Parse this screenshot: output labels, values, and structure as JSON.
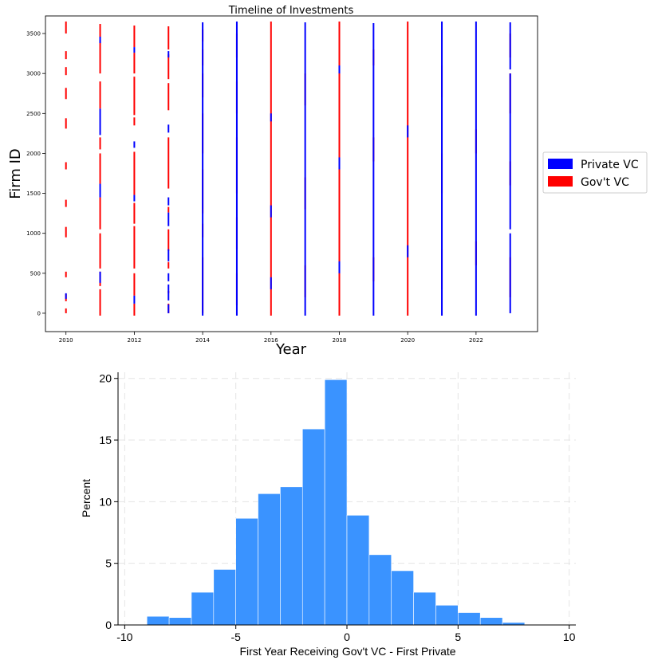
{
  "chart_data": [
    {
      "type": "timeline",
      "title": "Timeline of Investments",
      "xlabel": "Year",
      "ylabel": "Firm ID",
      "xlim": [
        2009.4,
        2023.8
      ],
      "ylim": [
        -230,
        3720
      ],
      "x_ticks": [
        2010,
        2012,
        2014,
        2016,
        2018,
        2020,
        2022
      ],
      "y_ticks": [
        0,
        500,
        1000,
        1500,
        2000,
        2500,
        3000,
        3500
      ],
      "legend": {
        "placement": "outside right",
        "entries": [
          "Private VC",
          "Gov't VC"
        ]
      },
      "colors": {
        "private": "#0000ff",
        "gov": "#ff0000"
      },
      "years": [
        {
          "year": 2010,
          "gov": [
            [
              0,
              60
            ],
            [
              150,
              240
            ],
            [
              450,
              520
            ],
            [
              950,
              1080
            ],
            [
              1330,
              1420
            ],
            [
              1800,
              1890
            ],
            [
              2310,
              2440
            ],
            [
              2680,
              2820
            ],
            [
              2980,
              3080
            ],
            [
              3180,
              3280
            ],
            [
              3500,
              3650
            ]
          ],
          "private": [
            [
              180,
              250
            ]
          ]
        },
        {
          "year": 2011,
          "gov": [
            [
              -30,
              300
            ],
            [
              340,
              520
            ],
            [
              560,
              1000
            ],
            [
              1050,
              1450
            ],
            [
              1620,
              2000
            ],
            [
              2050,
              2200
            ],
            [
              2560,
              2900
            ],
            [
              3000,
              3420
            ],
            [
              3450,
              3620
            ]
          ],
          "private": [
            [
              380,
              520
            ],
            [
              1450,
              1620
            ],
            [
              2230,
              2560
            ],
            [
              3380,
              3460
            ]
          ]
        },
        {
          "year": 2012,
          "gov": [
            [
              -30,
              120
            ],
            [
              220,
              500
            ],
            [
              560,
              1090
            ],
            [
              1120,
              1380
            ],
            [
              1480,
              2020
            ],
            [
              2350,
              2450
            ],
            [
              2480,
              2960
            ],
            [
              3000,
              3260
            ],
            [
              3330,
              3600
            ]
          ],
          "private": [
            [
              120,
              220
            ],
            [
              1400,
              1480
            ],
            [
              2070,
              2150
            ],
            [
              3260,
              3330
            ]
          ]
        },
        {
          "year": 2013,
          "gov": [
            [
              0,
              120
            ],
            [
              250,
              280
            ],
            [
              560,
              640
            ],
            [
              780,
              1050
            ],
            [
              1260,
              1330
            ],
            [
              1560,
              2200
            ],
            [
              2540,
              2880
            ],
            [
              2930,
              3240
            ],
            [
              3300,
              3590
            ]
          ],
          "private": [
            [
              0,
              110
            ],
            [
              160,
              360
            ],
            [
              400,
              500
            ],
            [
              650,
              800
            ],
            [
              1090,
              1260
            ],
            [
              1350,
              1450
            ],
            [
              2260,
              2360
            ],
            [
              3200,
              3280
            ]
          ]
        },
        {
          "year": 2014,
          "gov": [
            [
              0,
              700
            ],
            [
              950,
              1120
            ],
            [
              1250,
              1800
            ],
            [
              2000,
              2500
            ],
            [
              2700,
              3000
            ],
            [
              3100,
              3300
            ],
            [
              3400,
              3550
            ]
          ],
          "private": [
            [
              -30,
              1300
            ],
            [
              1300,
              3640
            ]
          ]
        },
        {
          "year": 2015,
          "gov": [
            [
              100,
              500
            ],
            [
              800,
              1200
            ],
            [
              1500,
              2200
            ],
            [
              2500,
              2900
            ],
            [
              3200,
              3500
            ]
          ],
          "private": [
            [
              -30,
              3650
            ]
          ]
        },
        {
          "year": 2016,
          "gov": [
            [
              -30,
              3650
            ]
          ],
          "private": [
            [
              300,
              450
            ],
            [
              1200,
              1350
            ],
            [
              2400,
              2500
            ]
          ]
        },
        {
          "year": 2017,
          "gov": [
            [
              200,
              600
            ],
            [
              1300,
              1700
            ],
            [
              2600,
              3000
            ]
          ],
          "private": [
            [
              -30,
              3640
            ]
          ]
        },
        {
          "year": 2018,
          "gov": [
            [
              -30,
              3650
            ]
          ],
          "private": [
            [
              500,
              650
            ],
            [
              1800,
              1950
            ],
            [
              3000,
              3100
            ]
          ]
        },
        {
          "year": 2019,
          "gov": [
            [
              400,
              700
            ],
            [
              1900,
              2200
            ],
            [
              3100,
              3300
            ]
          ],
          "private": [
            [
              -30,
              3630
            ]
          ]
        },
        {
          "year": 2020,
          "gov": [
            [
              -30,
              3650
            ]
          ],
          "private": [
            [
              700,
              850
            ],
            [
              2200,
              2350
            ]
          ]
        },
        {
          "year": 2021,
          "gov": [
            [
              300,
              800
            ],
            [
              1500,
              2000
            ],
            [
              2700,
              3100
            ]
          ],
          "private": [
            [
              -30,
              3650
            ]
          ]
        },
        {
          "year": 2022,
          "gov": [
            [
              600,
              900
            ],
            [
              2000,
              2300
            ]
          ],
          "private": [
            [
              -30,
              3650
            ]
          ]
        },
        {
          "year": 2023,
          "gov": [
            [
              200,
              700
            ],
            [
              1600,
              1900
            ],
            [
              2500,
              3000
            ],
            [
              3200,
              3500
            ]
          ],
          "private": [
            [
              0,
              1000
            ],
            [
              1050,
              3000
            ],
            [
              3050,
              3640
            ]
          ]
        }
      ]
    },
    {
      "type": "bar",
      "title": "",
      "xlabel": "First Year Receiving Gov't VC - First Private",
      "ylabel": "Percent",
      "xlim": [
        -10.3,
        10.3
      ],
      "ylim": [
        0,
        20.5
      ],
      "x_ticks": [
        -10,
        -5,
        0,
        5,
        10
      ],
      "y_ticks": [
        0,
        5,
        10,
        15,
        20
      ],
      "bar_color": "#3a93ff",
      "grid": true,
      "bins": [
        {
          "from": -9,
          "to": -8,
          "value": 0.7
        },
        {
          "from": -8,
          "to": -7,
          "value": 0.6
        },
        {
          "from": -7,
          "to": -6,
          "value": 2.65
        },
        {
          "from": -6,
          "to": -5,
          "value": 4.5
        },
        {
          "from": -5,
          "to": -4,
          "value": 8.65
        },
        {
          "from": -4,
          "to": -3,
          "value": 10.65
        },
        {
          "from": -3,
          "to": -2,
          "value": 11.2
        },
        {
          "from": -2,
          "to": -1,
          "value": 15.9
        },
        {
          "from": -1,
          "to": 0,
          "value": 19.9
        },
        {
          "from": 0,
          "to": 1,
          "value": 8.9
        },
        {
          "from": 1,
          "to": 2,
          "value": 5.7
        },
        {
          "from": 2,
          "to": 3,
          "value": 4.4
        },
        {
          "from": 3,
          "to": 4,
          "value": 2.65
        },
        {
          "from": 4,
          "to": 5,
          "value": 1.6
        },
        {
          "from": 5,
          "to": 6,
          "value": 1.0
        },
        {
          "from": 6,
          "to": 7,
          "value": 0.6
        },
        {
          "from": 7,
          "to": 8,
          "value": 0.2
        },
        {
          "from": 8,
          "to": 9,
          "value": 0.05
        },
        {
          "from": 9,
          "to": 10,
          "value": 0.05
        }
      ]
    }
  ]
}
